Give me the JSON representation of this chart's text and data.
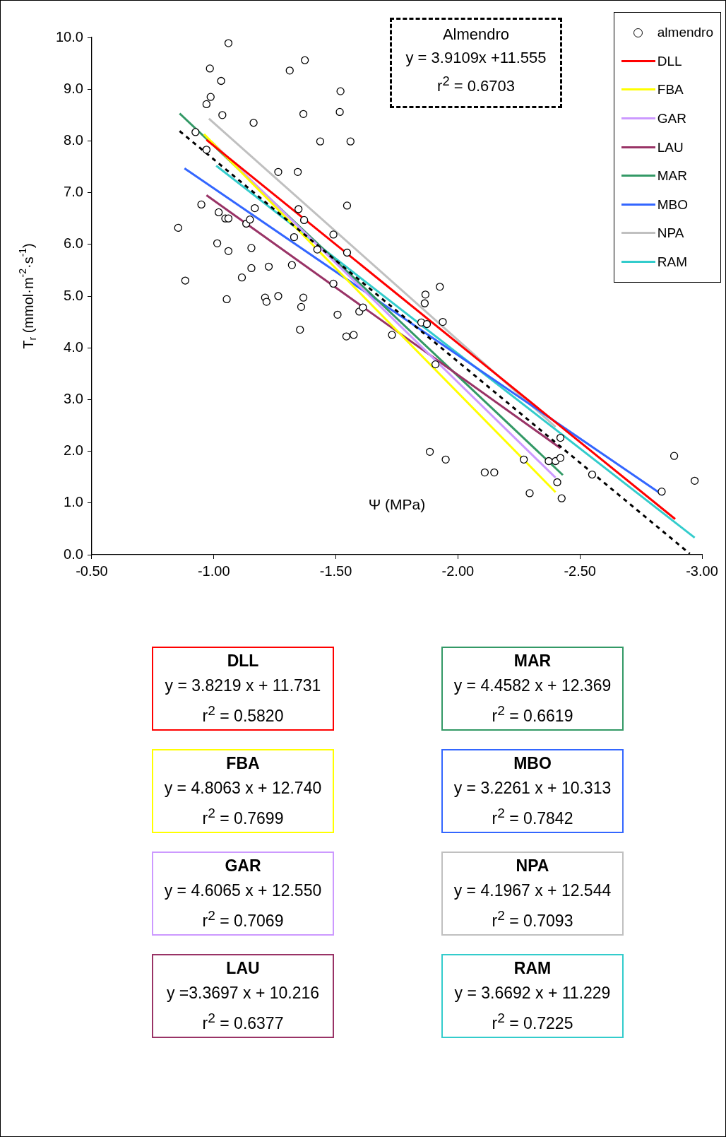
{
  "chart_data": {
    "type": "scatter",
    "ylabel": "T$_{r}$ (mmol·m$^{-2}$·s$^{-1}$)",
    "xlabel": "Ψ (MPa)",
    "xlim": [
      -0.5,
      -3.0
    ],
    "xticks": [
      {
        "value": -0.5,
        "label": "-0.50"
      },
      {
        "value": -1.0,
        "label": "-1.00"
      },
      {
        "value": -1.5,
        "label": "-1.50"
      },
      {
        "value": -2.0,
        "label": "-2.00"
      },
      {
        "value": -2.5,
        "label": "-2.50"
      },
      {
        "value": -3.0,
        "label": "-3.00"
      }
    ],
    "ylim": [
      0,
      10
    ],
    "yticks": [
      {
        "value": 0,
        "label": "0.0"
      },
      {
        "value": 1,
        "label": "1.0"
      },
      {
        "value": 2,
        "label": "2.0"
      },
      {
        "value": 3,
        "label": "3.0"
      },
      {
        "value": 4,
        "label": "4.0"
      },
      {
        "value": 5,
        "label": "5.0"
      },
      {
        "value": 6,
        "label": "6.0"
      },
      {
        "value": 7,
        "label": "7.0"
      },
      {
        "value": 8,
        "label": "8.0"
      },
      {
        "value": 9,
        "label": "9.0"
      },
      {
        "value": 10,
        "label": "10.0"
      }
    ],
    "grid": false,
    "legend": "top right",
    "series": [
      {
        "name": "almendro",
        "type": "scatter",
        "marker": "circle",
        "color": "#000000",
        "x": [
          -0.854,
          -0.883,
          -0.925,
          -0.949,
          -0.97,
          -0.97,
          -0.984,
          -0.987,
          -1.03,
          -1.035,
          -1.06,
          -1.02,
          -1.014,
          -1.047,
          -1.06,
          -1.06,
          -1.053,
          -1.115,
          -1.133,
          -1.148,
          -1.154,
          -1.154,
          -1.168,
          -1.163,
          -1.21,
          -1.216,
          -1.225,
          -1.264,
          -1.264,
          -1.311,
          -1.32,
          -1.329,
          -1.344,
          -1.347,
          -1.353,
          -1.358,
          -1.367,
          -1.37,
          -1.367,
          -1.373,
          -1.424,
          -1.436,
          -1.49,
          -1.49,
          -1.507,
          -1.516,
          -1.519,
          -1.543,
          -1.546,
          -1.546,
          -1.56,
          -1.573,
          -1.596,
          -1.611,
          -1.73,
          -1.85,
          -1.864,
          -1.867,
          -1.873,
          -1.885,
          -1.908,
          -1.926,
          -1.938,
          -1.95,
          -2.11,
          -2.149,
          -2.27,
          -2.294,
          -2.372,
          -2.4,
          -2.407,
          -2.42,
          -2.42,
          -2.425,
          -2.55,
          -2.835,
          -2.886,
          -2.97
        ],
        "values": [
          6.32,
          5.3,
          8.17,
          6.77,
          7.83,
          8.71,
          9.4,
          8.85,
          9.16,
          8.5,
          9.89,
          6.62,
          6.02,
          6.5,
          6.5,
          5.87,
          4.94,
          5.36,
          6.4,
          6.48,
          5.93,
          5.54,
          6.7,
          8.35,
          4.97,
          4.89,
          5.57,
          5.0,
          7.4,
          9.36,
          5.6,
          6.14,
          7.4,
          6.68,
          4.35,
          4.79,
          4.97,
          6.47,
          8.52,
          9.56,
          5.9,
          7.99,
          5.24,
          6.19,
          4.64,
          8.56,
          8.96,
          4.22,
          6.75,
          5.84,
          7.99,
          4.25,
          4.7,
          4.78,
          4.25,
          4.49,
          4.86,
          5.03,
          4.46,
          1.99,
          3.68,
          5.18,
          4.5,
          1.84,
          1.59,
          1.59,
          1.84,
          1.19,
          1.81,
          1.81,
          1.4,
          1.87,
          2.26,
          1.09,
          1.55,
          1.22,
          1.91,
          1.43
        ]
      },
      {
        "type": "line",
        "line_style": "dashed",
        "color": "#000000",
        "x": [
          -0.86,
          -2.95
        ],
        "values": [
          8.19,
          0.02
        ]
      },
      {
        "name": "DLL",
        "type": "line",
        "color": "#ff0000",
        "x": [
          -0.97,
          -2.89
        ],
        "values": [
          8.02,
          0.69
        ]
      },
      {
        "name": "FBA",
        "type": "line",
        "color": "#ffff00",
        "x": [
          -0.96,
          -2.4
        ],
        "values": [
          8.13,
          1.21
        ]
      },
      {
        "name": "GAR",
        "type": "line",
        "color": "#cc99ff",
        "x": [
          -0.99,
          -2.4
        ],
        "values": [
          7.99,
          1.49
        ]
      },
      {
        "name": "LAU",
        "type": "line",
        "color": "#993366",
        "x": [
          -0.97,
          -2.42
        ],
        "values": [
          6.95,
          2.06
        ]
      },
      {
        "name": "MAR",
        "type": "line",
        "color": "#339966",
        "x": [
          -0.86,
          -2.43
        ],
        "values": [
          8.53,
          1.54
        ]
      },
      {
        "name": "MBO",
        "type": "line",
        "color": "#3366ff",
        "x": [
          -0.88,
          -2.84
        ],
        "values": [
          7.47,
          1.15
        ]
      },
      {
        "name": "NPA",
        "type": "line",
        "color": "#c0c0c0",
        "x": [
          -0.98,
          -2.4
        ],
        "values": [
          8.43,
          2.47
        ]
      },
      {
        "name": "RAM",
        "type": "line",
        "color": "#33cccc",
        "x": [
          -1.01,
          -2.97
        ],
        "values": [
          7.52,
          0.33
        ]
      }
    ],
    "annotations": [
      "Almendro\ny = 3.9109x +11.555\nr$^{2}$ = 0.6703",
      "DLL\ny = 3.8219 x + 11.731\nr$^{2}$ = 0.5820",
      "FBA\ny = 4.8063 x + 12.740\nr$^{2}$ = 0.7699",
      "GAR\ny = 4.6065 x + 12.550\nr$^{2}$ = 0.7069",
      "LAU\ny =3.3697 x + 10.216\nr$^{2}$ = 0.6377",
      "MAR\ny = 4.4582 x + 12.369\nr$^{2}$ = 0.6619",
      "MBO\ny = 3.2261 x + 10.313\nr$^{2}$ = 0.7842",
      "NPA\ny = 4.1967 x + 12.544\nr$^{2}$ = 0.7093",
      "RAM\ny = 3.6692 x + 11.229\nr$^{2}$ = 0.7225"
    ]
  }
}
